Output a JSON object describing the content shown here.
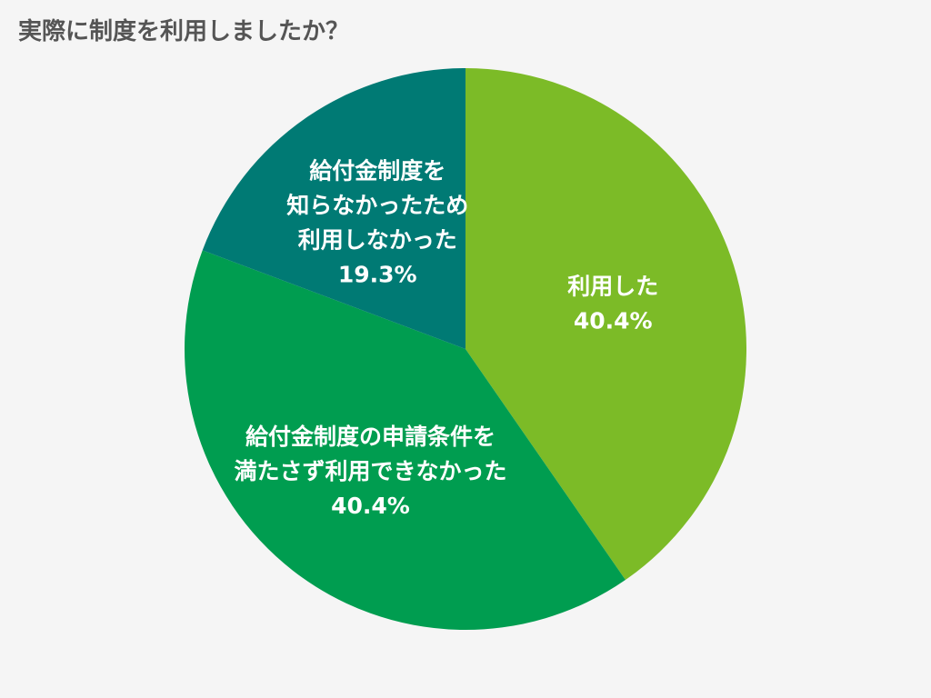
{
  "chart_data": {
    "type": "pie",
    "title": "実際に制度を利用しましたか？",
    "slices": [
      {
        "label_lines": [
          "利用した"
        ],
        "value": 40.4,
        "value_label": "40.4%",
        "color": "#7cbb27"
      },
      {
        "label_lines": [
          "給付金制度の申請条件を",
          "満たさず利用できなかった"
        ],
        "value": 40.4,
        "value_label": "40.4%",
        "color": "#009d50"
      },
      {
        "label_lines": [
          "給付金制度を",
          "知らなかったため",
          "利用しなかった"
        ],
        "value": 19.3,
        "value_label": "19.3%",
        "color": "#007a74"
      }
    ]
  }
}
